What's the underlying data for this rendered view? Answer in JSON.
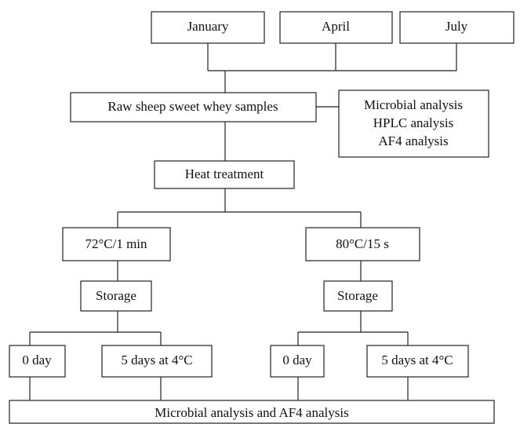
{
  "months": [
    "January",
    "April",
    "July"
  ],
  "samples": "Raw sheep sweet whey samples",
  "analyses": [
    "Microbial analysis",
    "HPLC analysis",
    "AF4 analysis"
  ],
  "heat_treatment": "Heat treatment",
  "branches": [
    {
      "treatment": "72°C/1 min",
      "storage": "Storage",
      "days": [
        "0 day",
        "5 days at 4°C"
      ]
    },
    {
      "treatment": "80°C/15 s",
      "storage": "Storage",
      "days": [
        "0 day",
        "5 days at 4°C"
      ]
    }
  ],
  "final": "Microbial analysis and AF4 analysis"
}
